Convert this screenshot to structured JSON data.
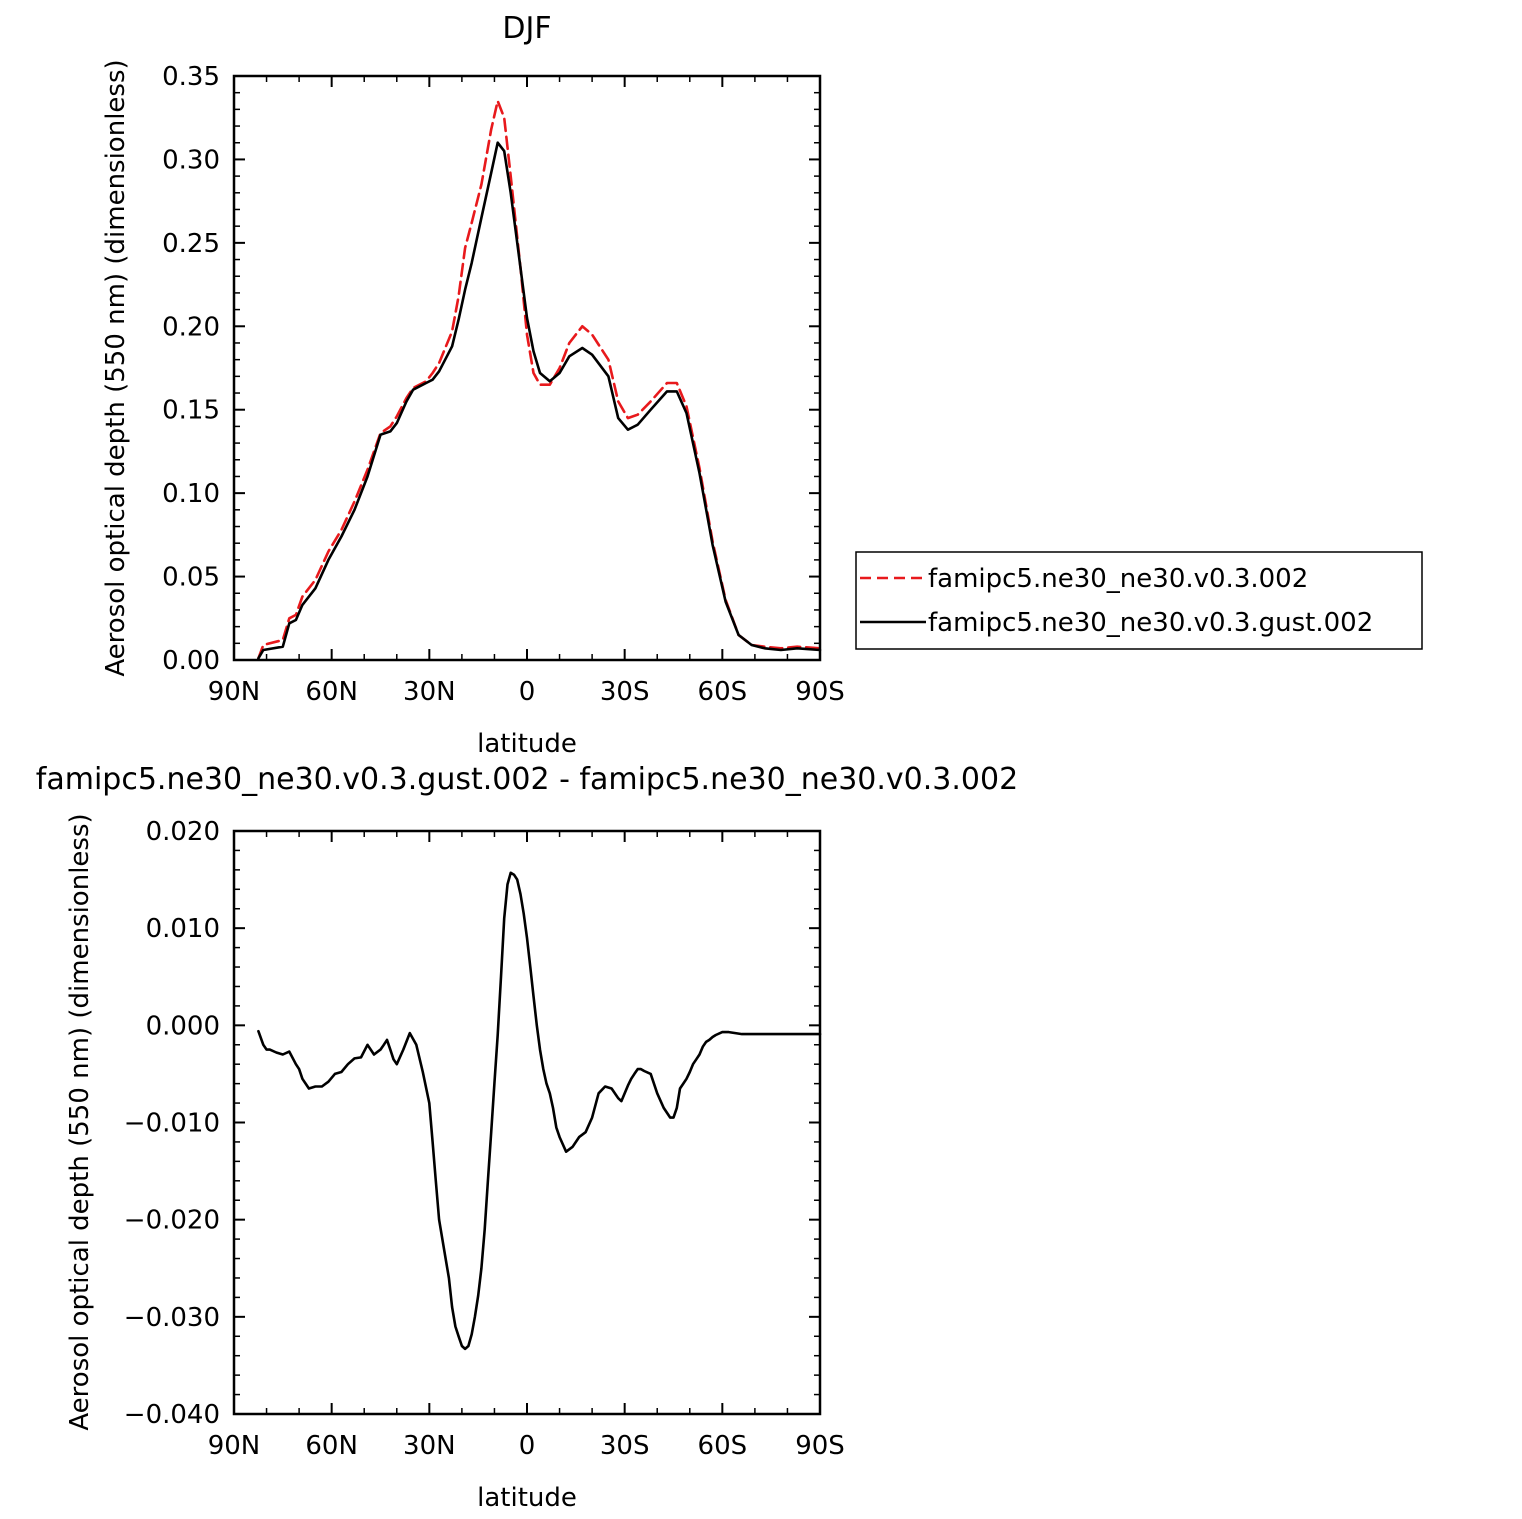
{
  "chart_data": [
    {
      "type": "line",
      "title": "DJF",
      "xlabel": "latitude",
      "ylabel": "Aerosol optical depth (550 nm) (dimensionless)",
      "xlim": [
        90,
        -90
      ],
      "ylim": [
        0,
        0.35
      ],
      "x_ticks": [
        90,
        60,
        30,
        0,
        -30,
        -60,
        -90
      ],
      "x_tick_labels": [
        "90N",
        "60N",
        "30N",
        "0",
        "30S",
        "60S",
        "90S"
      ],
      "y_ticks": [
        0,
        0.05,
        0.1,
        0.15,
        0.2,
        0.25,
        0.3,
        0.35
      ],
      "y_tick_labels": [
        "0.00",
        "0.05",
        "0.10",
        "0.15",
        "0.20",
        "0.25",
        "0.30",
        "0.35"
      ],
      "grid": false,
      "legend_position": "right, outside plot",
      "series": [
        {
          "name": "famipc5.ne30_ne30.v0.3.002",
          "color": "#e8191c",
          "dash": "dashed",
          "x": [
            82.5,
            81,
            75,
            73,
            71,
            69,
            65,
            61,
            57,
            53,
            49,
            45,
            42,
            40,
            37,
            35,
            31,
            29,
            27,
            23,
            21,
            19,
            17,
            14,
            11,
            9,
            7,
            5,
            2,
            0,
            -2,
            -4,
            -7,
            -10,
            -13,
            -17,
            -20,
            -25,
            -28,
            -31,
            -34,
            -38,
            -43,
            -46,
            -49,
            -53,
            -57,
            -61,
            -65,
            -69,
            -73,
            -78,
            -83,
            -90
          ],
          "y": [
            0.001,
            0.009,
            0.012,
            0.025,
            0.027,
            0.038,
            0.048,
            0.065,
            0.078,
            0.095,
            0.114,
            0.136,
            0.14,
            0.146,
            0.157,
            0.163,
            0.167,
            0.172,
            0.178,
            0.197,
            0.218,
            0.247,
            0.262,
            0.285,
            0.318,
            0.335,
            0.325,
            0.29,
            0.235,
            0.195,
            0.172,
            0.165,
            0.165,
            0.175,
            0.19,
            0.2,
            0.195,
            0.18,
            0.155,
            0.145,
            0.147,
            0.155,
            0.166,
            0.166,
            0.152,
            0.115,
            0.071,
            0.036,
            0.015,
            0.009,
            0.008,
            0.007,
            0.008,
            0.007
          ]
        },
        {
          "name": "famipc5.ne30_ne30.v0.3.gust.002",
          "color": "#000000",
          "dash": "solid",
          "x": [
            82.5,
            81,
            75,
            73,
            71,
            69,
            65,
            61,
            57,
            53,
            49,
            45,
            42,
            40,
            37,
            35,
            31,
            29,
            27,
            23,
            21,
            19,
            17,
            14,
            11,
            9,
            7,
            5,
            2,
            0,
            -2,
            -4,
            -7,
            -10,
            -13,
            -17,
            -20,
            -25,
            -28,
            -31,
            -34,
            -38,
            -43,
            -46,
            -49,
            -53,
            -57,
            -61,
            -65,
            -69,
            -73,
            -78,
            -83,
            -90
          ],
          "y": [
            0.001,
            0.006,
            0.008,
            0.022,
            0.024,
            0.033,
            0.043,
            0.06,
            0.074,
            0.09,
            0.11,
            0.135,
            0.137,
            0.142,
            0.155,
            0.162,
            0.166,
            0.168,
            0.173,
            0.188,
            0.204,
            0.222,
            0.238,
            0.265,
            0.292,
            0.31,
            0.305,
            0.28,
            0.235,
            0.205,
            0.185,
            0.172,
            0.167,
            0.172,
            0.182,
            0.187,
            0.183,
            0.17,
            0.145,
            0.138,
            0.141,
            0.15,
            0.161,
            0.161,
            0.148,
            0.112,
            0.069,
            0.035,
            0.015,
            0.009,
            0.007,
            0.006,
            0.007,
            0.006
          ]
        }
      ]
    },
    {
      "type": "line",
      "title": "famipc5.ne30_ne30.v0.3.gust.002 - famipc5.ne30_ne30.v0.3.002",
      "xlabel": "latitude",
      "ylabel": "Aerosol optical depth (550 nm) (dimensionless)",
      "xlim": [
        90,
        -90
      ],
      "ylim": [
        -0.04,
        0.02
      ],
      "x_ticks": [
        90,
        60,
        30,
        0,
        -30,
        -60,
        -90
      ],
      "x_tick_labels": [
        "90N",
        "60N",
        "30N",
        "0",
        "30S",
        "60S",
        "90S"
      ],
      "y_ticks": [
        0.02,
        0.01,
        0,
        -0.01,
        -0.02,
        -0.03,
        -0.04
      ],
      "y_tick_labels": [
        "0.020",
        "0.010",
        "0.000",
        "−0.010",
        "−0.020",
        "−0.030",
        "−0.040"
      ],
      "grid": false,
      "series": [
        {
          "color": "#000000",
          "dash": "solid",
          "x": [
            82.5,
            81,
            80,
            79,
            77,
            75,
            73,
            71,
            70,
            69,
            67,
            65,
            63,
            61,
            59,
            57,
            55,
            53,
            51,
            49,
            47,
            45,
            44,
            43,
            42,
            41,
            40,
            38,
            36,
            34,
            32,
            30,
            29,
            28,
            27,
            25,
            24,
            23,
            22,
            21,
            20,
            19,
            18,
            17,
            16,
            15,
            14,
            13,
            12,
            11,
            10,
            9,
            8,
            7,
            6,
            5,
            4,
            3,
            2,
            1,
            0,
            -1,
            -2,
            -3,
            -4,
            -5,
            -6,
            -7,
            -8,
            -9,
            -10,
            -12,
            -14,
            -16,
            -18,
            -20,
            -22,
            -24,
            -26,
            -28,
            -29,
            -30,
            -31,
            -32,
            -33,
            -34,
            -35,
            -36,
            -38,
            -40,
            -42,
            -44,
            -45,
            -46,
            -47,
            -48,
            -49,
            -50,
            -51,
            -52,
            -53,
            -54,
            -55,
            -56,
            -57,
            -58,
            -60,
            -62,
            -64,
            -66,
            -68,
            -70,
            -72,
            -75,
            -80,
            -85,
            -90
          ],
          "y": [
            -0.0006,
            -0.002,
            -0.0025,
            -0.0025,
            -0.0028,
            -0.003,
            -0.0027,
            -0.004,
            -0.0045,
            -0.0055,
            -0.0065,
            -0.0063,
            -0.0063,
            -0.0058,
            -0.005,
            -0.0048,
            -0.004,
            -0.0034,
            -0.0033,
            -0.002,
            -0.003,
            -0.0025,
            -0.002,
            -0.0015,
            -0.0025,
            -0.0035,
            -0.004,
            -0.0025,
            -0.0008,
            -0.002,
            -0.0048,
            -0.008,
            -0.012,
            -0.016,
            -0.02,
            -0.024,
            -0.026,
            -0.029,
            -0.031,
            -0.032,
            -0.033,
            -0.0333,
            -0.033,
            -0.0318,
            -0.03,
            -0.0278,
            -0.025,
            -0.021,
            -0.016,
            -0.011,
            -0.006,
            -0.001,
            0.005,
            0.011,
            0.0145,
            0.0157,
            0.0155,
            0.015,
            0.0135,
            0.0115,
            0.009,
            0.006,
            0.003,
            0,
            -0.0025,
            -0.0045,
            -0.006,
            -0.007,
            -0.0085,
            -0.0105,
            -0.0115,
            -0.013,
            -0.0125,
            -0.0115,
            -0.011,
            -0.0095,
            -0.007,
            -0.0063,
            -0.0065,
            -0.0075,
            -0.0078,
            -0.007,
            -0.0062,
            -0.0055,
            -0.005,
            -0.0045,
            -0.0045,
            -0.0047,
            -0.005,
            -0.007,
            -0.0085,
            -0.0095,
            -0.0095,
            -0.0085,
            -0.0065,
            -0.006,
            -0.0055,
            -0.0048,
            -0.004,
            -0.0035,
            -0.003,
            -0.0022,
            -0.0017,
            -0.0015,
            -0.0012,
            -0.001,
            -0.0007,
            -0.0007,
            -0.0008,
            -0.0009,
            -0.0009,
            -0.0009,
            -0.0009,
            -0.0009,
            -0.0009,
            -0.0009,
            -0.0009
          ]
        }
      ]
    }
  ]
}
